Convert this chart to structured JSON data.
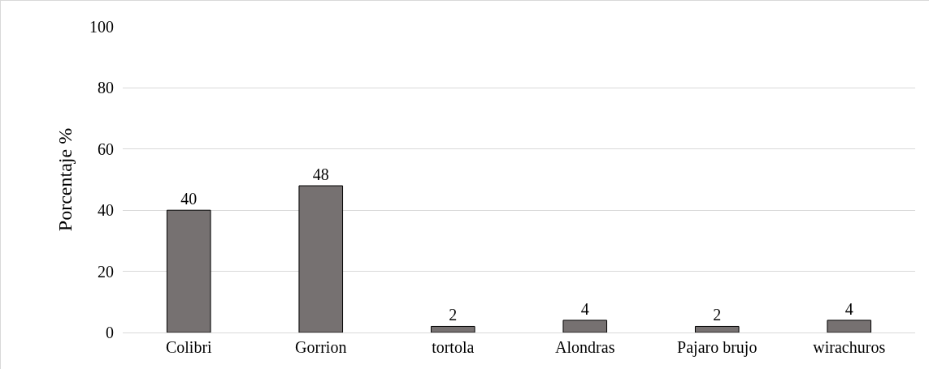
{
  "chart_data": {
    "type": "bar",
    "ylabel": "Porcentaje %",
    "categories": [
      "Colibri",
      "Gorrion",
      "tortola",
      "Alondras",
      "Pajaro brujo",
      "wirachuros"
    ],
    "values": [
      40,
      48,
      2,
      4,
      2,
      4
    ],
    "color": "#767171",
    "ylim": [
      0,
      100
    ],
    "yticks": [
      0,
      20,
      40,
      60,
      80,
      100
    ],
    "grid": "y",
    "data_labels": true
  }
}
